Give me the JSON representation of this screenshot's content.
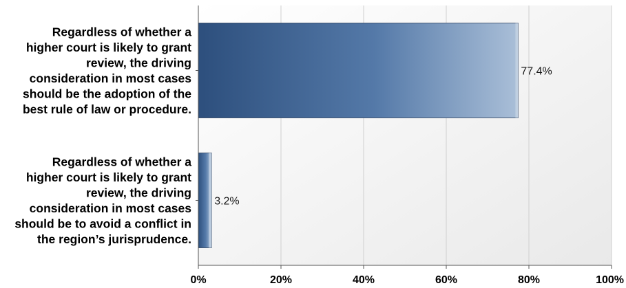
{
  "chart_data": {
    "type": "bar",
    "orientation": "horizontal",
    "categories": [
      [
        "Regardless of whether a",
        "higher court is likely to grant",
        "review, the driving",
        "consideration in most cases",
        "should be the adoption of the",
        "best rule of law or procedure."
      ],
      [
        "Regardless of whether a",
        "higher court is likely to grant",
        "review, the driving",
        "consideration in most cases",
        "should be to avoid a conflict in",
        "the region’s jurisprudence."
      ]
    ],
    "values": [
      77.4,
      3.2
    ],
    "data_labels": [
      "77.4%",
      "3.2%"
    ],
    "xlim": [
      0,
      100
    ],
    "x_ticks": [
      0,
      20,
      40,
      60,
      80,
      100
    ],
    "x_tick_labels": [
      "0%",
      "20%",
      "40%",
      "60%",
      "80%",
      "100%"
    ],
    "grid": true,
    "bar_color_dark": "#2d4f7d",
    "bar_color_light": "#aabfd8"
  }
}
